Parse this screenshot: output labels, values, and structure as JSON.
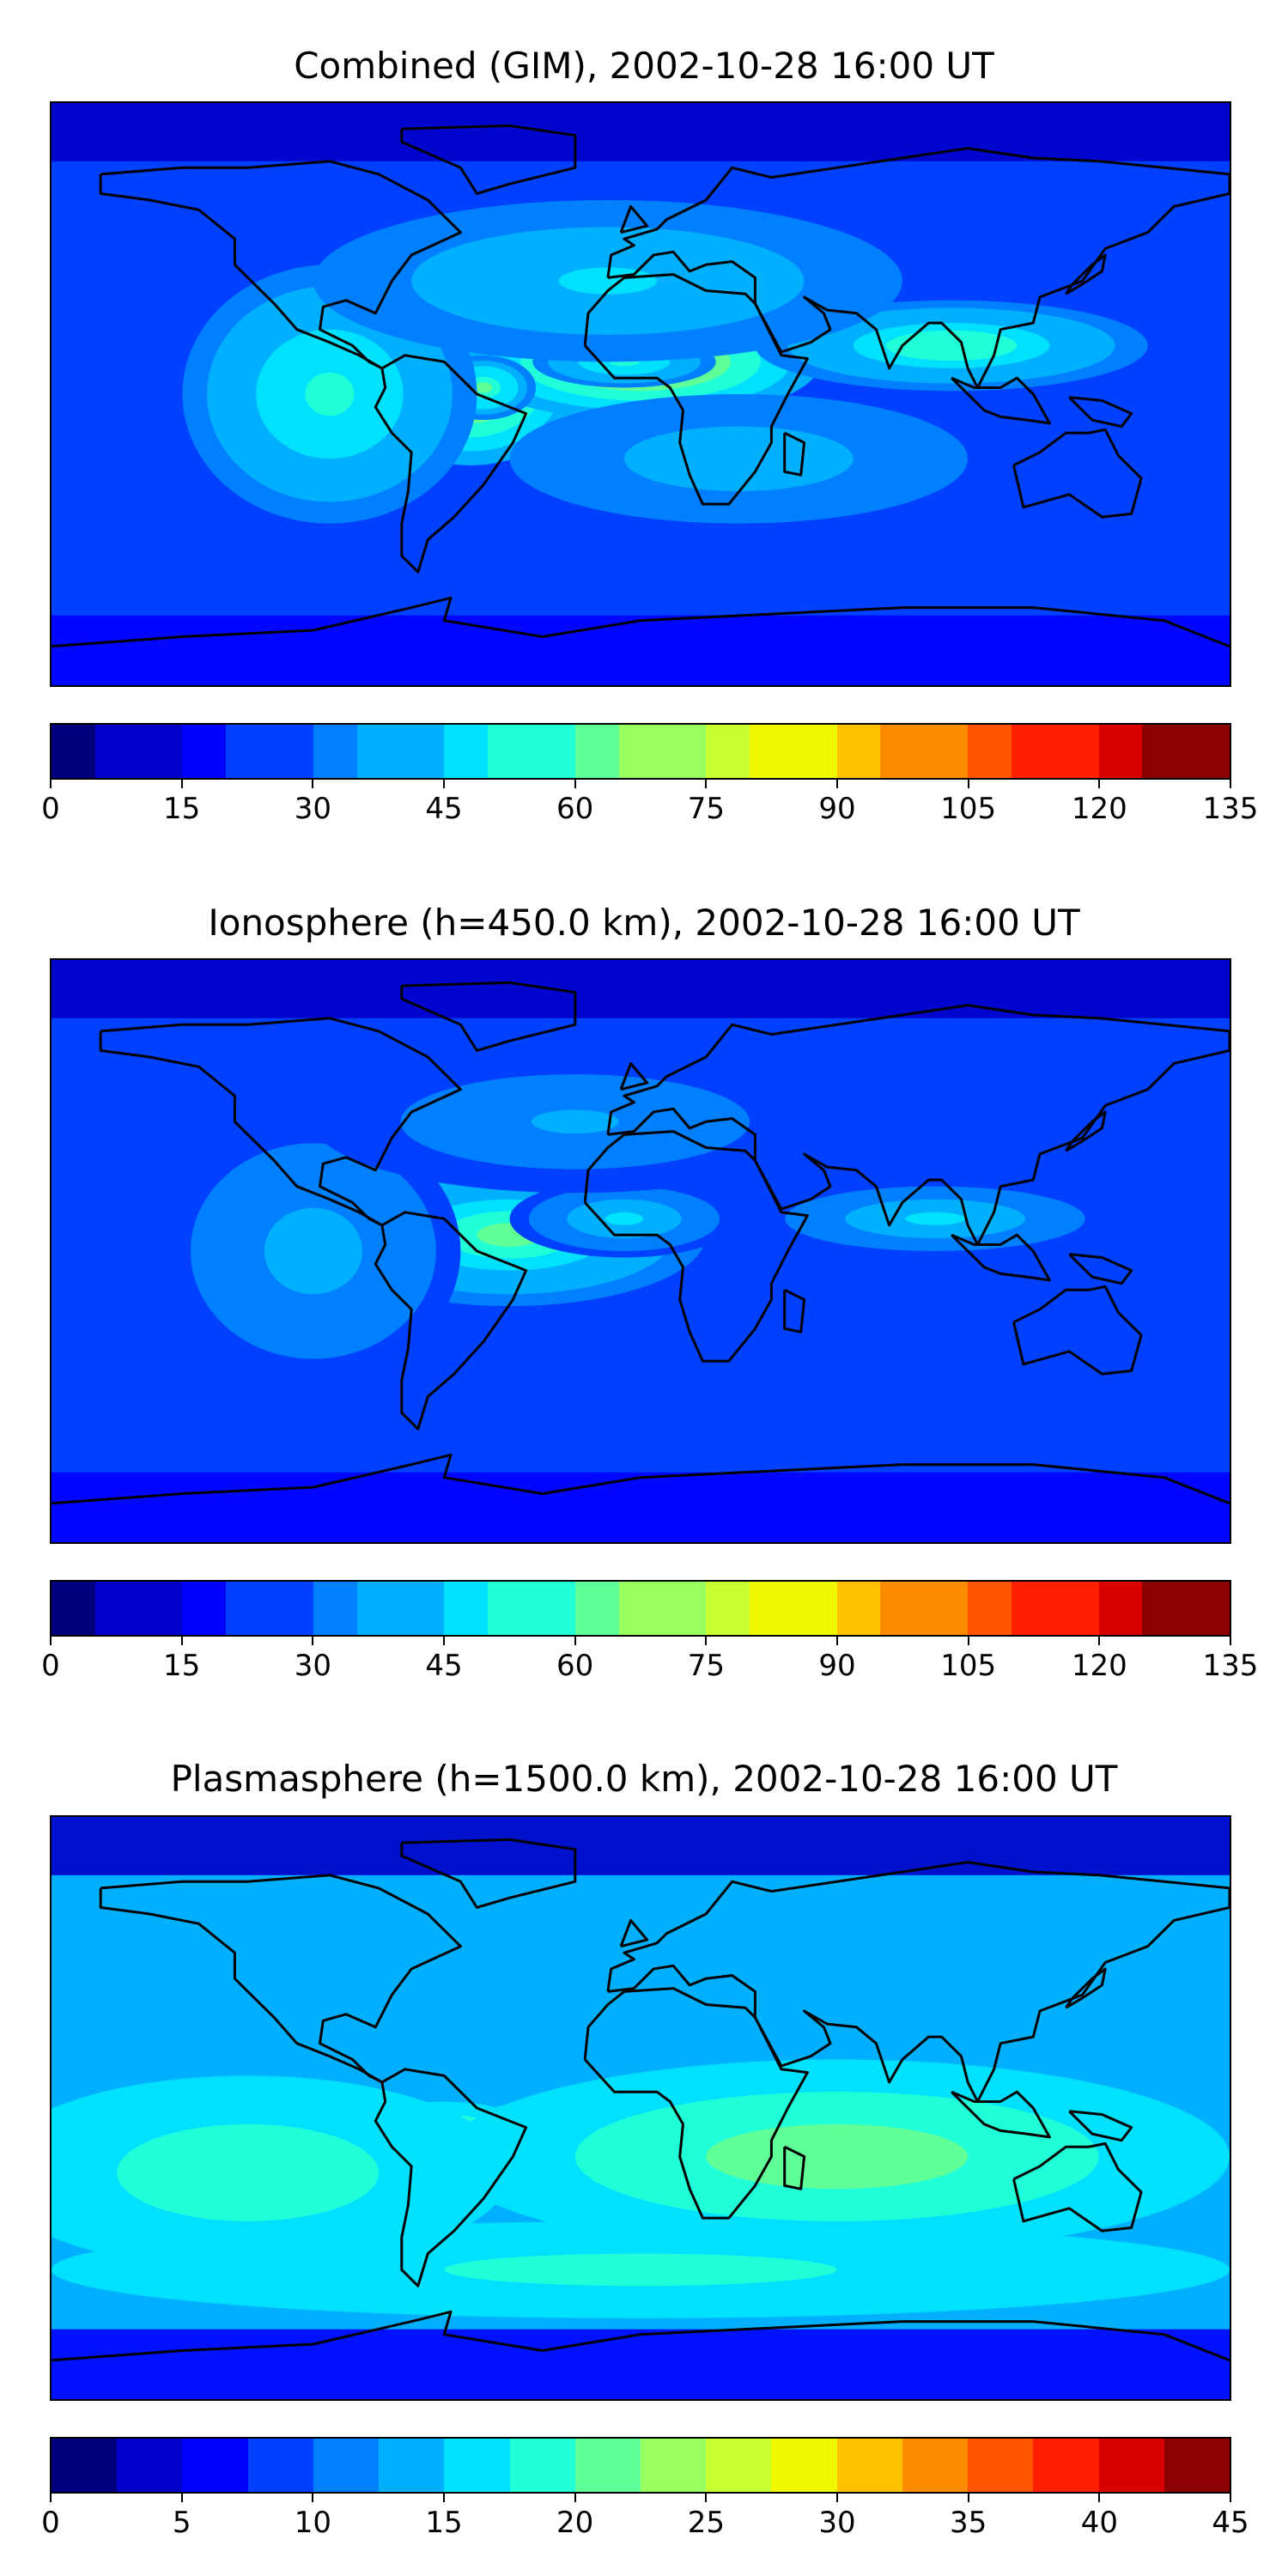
{
  "panels": [
    {
      "title": "Combined (GIM), 2002-10-28 16:00 UT",
      "colorbar": {
        "min": 0,
        "max": 135,
        "levels": 27,
        "ticks": [
          "0",
          "15",
          "30",
          "45",
          "60",
          "75",
          "90",
          "105",
          "120",
          "135"
        ]
      },
      "blobs": [
        {
          "lon": -52,
          "lat": 4,
          "rx": 34,
          "ry": 26,
          "level": 0.35
        },
        {
          "lon": 0,
          "lat": 10,
          "rx": 55,
          "ry": 18,
          "level": 0.35
        },
        {
          "lon": -48,
          "lat": 2,
          "rx": 16,
          "ry": 10,
          "level": 0.25
        },
        {
          "lon": -5,
          "lat": 10,
          "rx": 28,
          "ry": 8,
          "level": 0.2
        },
        {
          "lon": 95,
          "lat": 15,
          "rx": 60,
          "ry": 14,
          "level": 0.22
        },
        {
          "lon": -95,
          "lat": 0,
          "rx": 45,
          "ry": 40,
          "level": 0.18
        },
        {
          "lon": -10,
          "lat": 35,
          "rx": 90,
          "ry": 25,
          "level": 0.12
        },
        {
          "lon": 30,
          "lat": -20,
          "rx": 70,
          "ry": 20,
          "level": 0.1
        }
      ],
      "base_level": 0.22
    },
    {
      "title": "Ionosphere  (h=450.0 km), 2002-10-28 16:00 UT",
      "colorbar": {
        "min": 0,
        "max": 135,
        "levels": 27,
        "ticks": [
          "0",
          "15",
          "30",
          "45",
          "60",
          "75",
          "90",
          "105",
          "120",
          "135"
        ]
      },
      "blobs": [
        {
          "lon": -40,
          "lat": 5,
          "rx": 60,
          "ry": 22,
          "level": 0.3
        },
        {
          "lon": -5,
          "lat": 10,
          "rx": 35,
          "ry": 12,
          "level": 0.18
        },
        {
          "lon": 90,
          "lat": 10,
          "rx": 55,
          "ry": 12,
          "level": 0.18
        },
        {
          "lon": -100,
          "lat": 0,
          "rx": 45,
          "ry": 40,
          "level": 0.14
        },
        {
          "lon": -20,
          "lat": 40,
          "rx": 80,
          "ry": 22,
          "level": 0.1
        }
      ],
      "base_level": 0.18
    },
    {
      "title": "Plasmasphere (h=1500.0 km), 2002-10-28 16:00 UT",
      "colorbar": {
        "min": 0,
        "max": 45,
        "levels": 18,
        "ticks": [
          "0",
          "5",
          "10",
          "15",
          "20",
          "25",
          "30",
          "35",
          "40",
          "45"
        ]
      },
      "blobs": [
        {
          "lon": 0,
          "lat": -12,
          "rx": 70,
          "ry": 16,
          "level": 0.3
        },
        {
          "lon": -10,
          "lat": -10,
          "rx": 22,
          "ry": 10,
          "level": 0.2
        },
        {
          "lon": 40,
          "lat": -12,
          "rx": 20,
          "ry": 10,
          "level": 0.2
        },
        {
          "lon": -60,
          "lat": -10,
          "rx": 30,
          "ry": 12,
          "level": 0.2
        },
        {
          "lon": 60,
          "lat": -15,
          "rx": 120,
          "ry": 30,
          "level": 0.15
        },
        {
          "lon": -120,
          "lat": -20,
          "rx": 80,
          "ry": 30,
          "level": 0.12
        },
        {
          "lon": 0,
          "lat": -50,
          "rx": 180,
          "ry": 15,
          "level": 0.1
        }
      ],
      "base_level": 0.32
    }
  ],
  "colormap": [
    "#00007f",
    "#0000c8",
    "#0000ff",
    "#0040ff",
    "#0080ff",
    "#00b0ff",
    "#00e0ff",
    "#20ffd8",
    "#60ff98",
    "#98ff60",
    "#c8ff30",
    "#f0f800",
    "#ffc000",
    "#ff8c00",
    "#ff5400",
    "#ff2000",
    "#d80000",
    "#8b0000"
  ]
}
